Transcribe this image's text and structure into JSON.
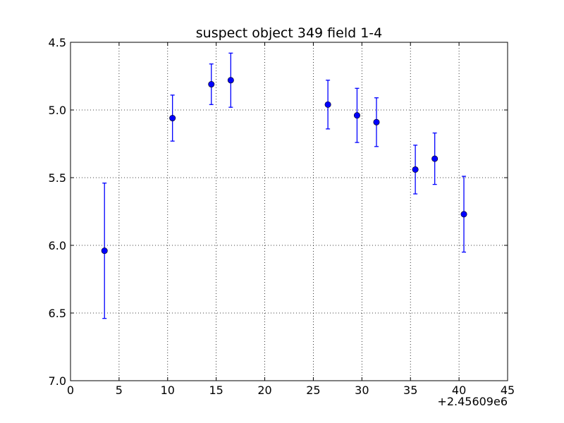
{
  "chart_data": {
    "type": "scatter",
    "title": "suspect object 349 field 1-4",
    "xlabel": "",
    "ylabel": "",
    "x_offset_label": "+2.45609e6",
    "xlim": [
      0,
      45
    ],
    "ylim": [
      7.0,
      4.5
    ],
    "y_inverted": true,
    "grid": true,
    "x_ticks": [
      0,
      5,
      10,
      15,
      20,
      25,
      30,
      35,
      40,
      45
    ],
    "x_tick_labels": [
      "0",
      "5",
      "10",
      "15",
      "20",
      "25",
      "30",
      "35",
      "40",
      "45"
    ],
    "y_ticks": [
      4.5,
      5.0,
      5.5,
      6.0,
      6.5,
      7.0
    ],
    "y_tick_labels": [
      "4.5",
      "5.0",
      "5.5",
      "6.0",
      "6.5",
      "7.0"
    ],
    "marker_color": "#0000ff",
    "series": [
      {
        "points": [
          {
            "x": 3.5,
            "y": 6.04,
            "err": 0.5
          },
          {
            "x": 10.5,
            "y": 5.06,
            "err": 0.17
          },
          {
            "x": 14.5,
            "y": 4.81,
            "err": 0.15
          },
          {
            "x": 16.5,
            "y": 4.78,
            "err": 0.2
          },
          {
            "x": 26.5,
            "y": 4.96,
            "err": 0.18
          },
          {
            "x": 29.5,
            "y": 5.04,
            "err": 0.2
          },
          {
            "x": 31.5,
            "y": 5.09,
            "err": 0.18
          },
          {
            "x": 35.5,
            "y": 5.44,
            "err": 0.18
          },
          {
            "x": 37.5,
            "y": 5.36,
            "err": 0.19
          },
          {
            "x": 40.5,
            "y": 5.77,
            "err": 0.28
          }
        ]
      }
    ]
  }
}
